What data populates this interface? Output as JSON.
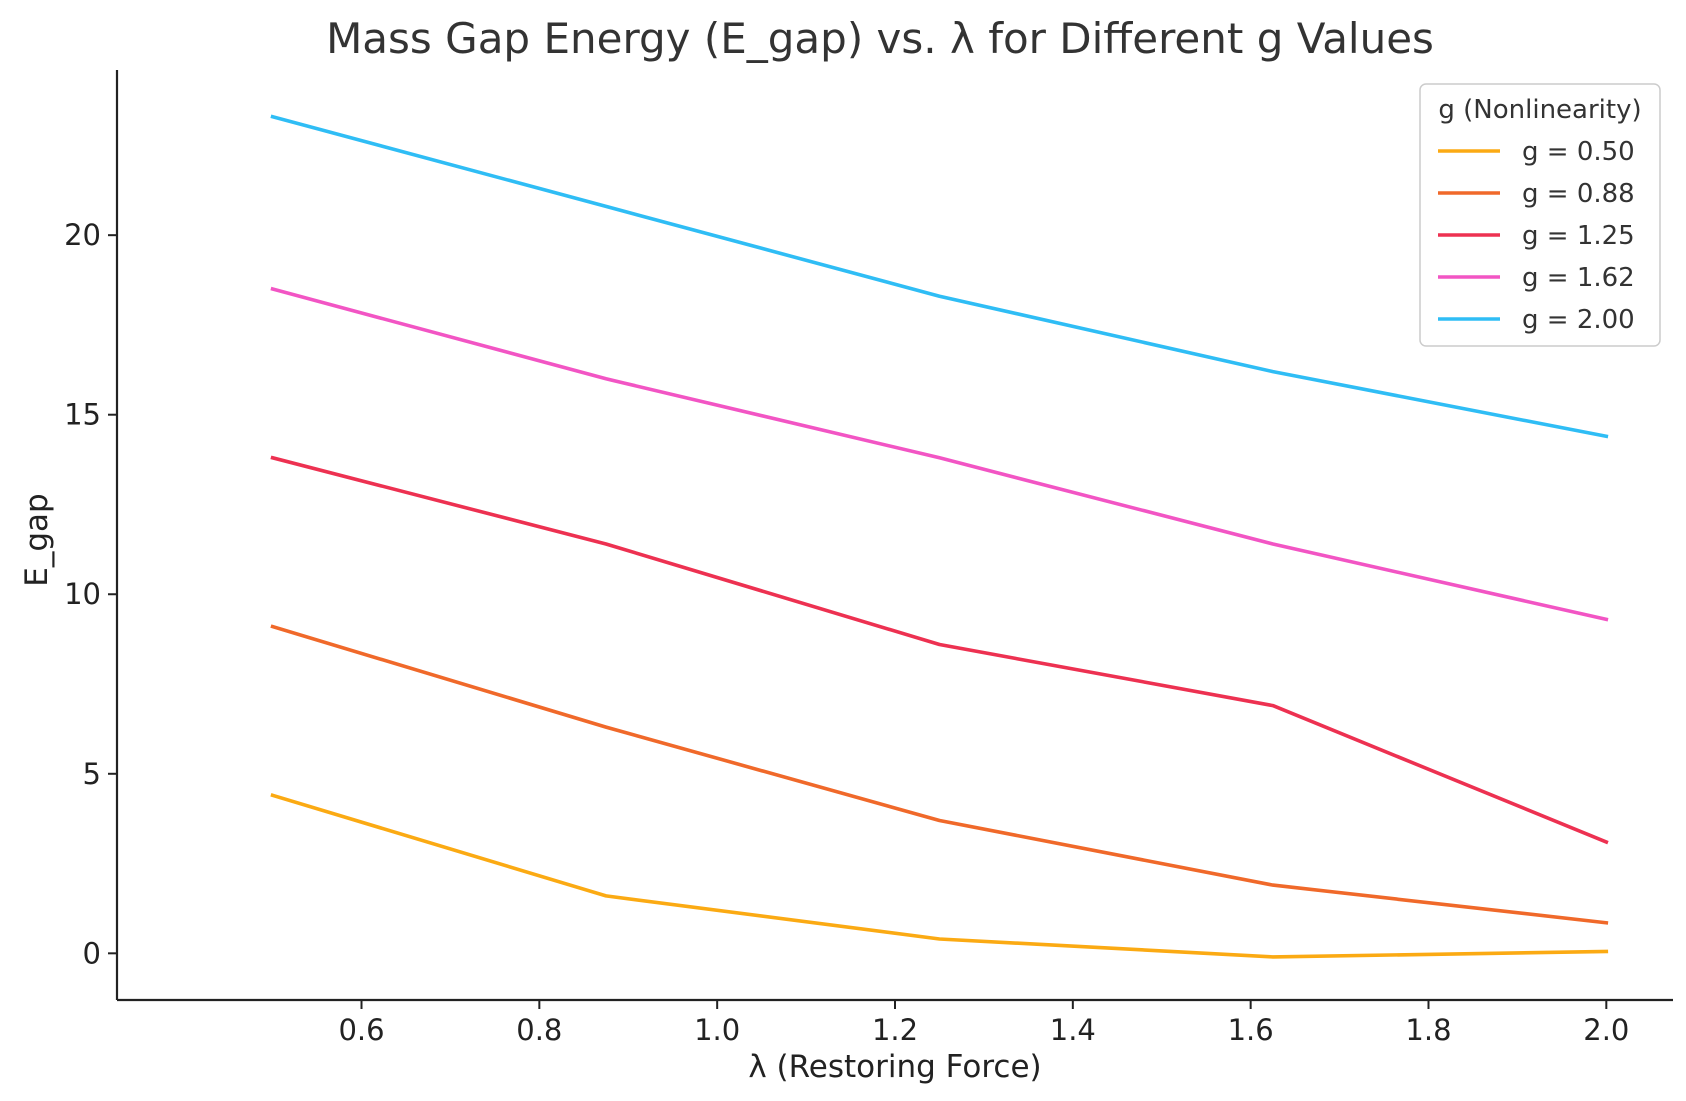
{
  "chart_data": {
    "type": "line",
    "title": "Mass Gap Energy (E_gap) vs. λ for Different g Values",
    "xlabel": "λ (Restoring Force)",
    "ylabel": "E_gap",
    "x": [
      0.5,
      0.875,
      1.25,
      1.625,
      2.0
    ],
    "xlim": [
      0.325,
      2.075
    ],
    "ylim": [
      -1.3,
      24.6
    ],
    "xticks": [
      0.6,
      0.8,
      1.0,
      1.2,
      1.4,
      1.6,
      1.8,
      2.0
    ],
    "xtick_labels": [
      "0.6",
      "0.8",
      "1.0",
      "1.2",
      "1.4",
      "1.6",
      "1.8",
      "2.0"
    ],
    "yticks": [
      0,
      5,
      10,
      15,
      20
    ],
    "ytick_labels": [
      "0",
      "5",
      "10",
      "15",
      "20"
    ],
    "grid": false,
    "legend": {
      "title": "g (Nonlinearity)",
      "placement": "top-right"
    },
    "series": [
      {
        "name": "g = 0.50",
        "color": "#fbaa13",
        "values": [
          4.4,
          1.6,
          0.4,
          -0.1,
          0.05
        ]
      },
      {
        "name": "g = 0.88",
        "color": "#f0692a",
        "values": [
          9.1,
          6.3,
          3.7,
          1.9,
          0.85
        ]
      },
      {
        "name": "g = 1.25",
        "color": "#ed3151",
        "values": [
          13.8,
          11.4,
          8.6,
          6.9,
          3.1
        ]
      },
      {
        "name": "g = 1.62",
        "color": "#f255c4",
        "values": [
          18.5,
          16.0,
          13.8,
          11.4,
          9.3
        ]
      },
      {
        "name": "g = 2.00",
        "color": "#2fbdf5",
        "values": [
          23.3,
          20.8,
          18.3,
          16.2,
          14.4
        ]
      }
    ]
  }
}
